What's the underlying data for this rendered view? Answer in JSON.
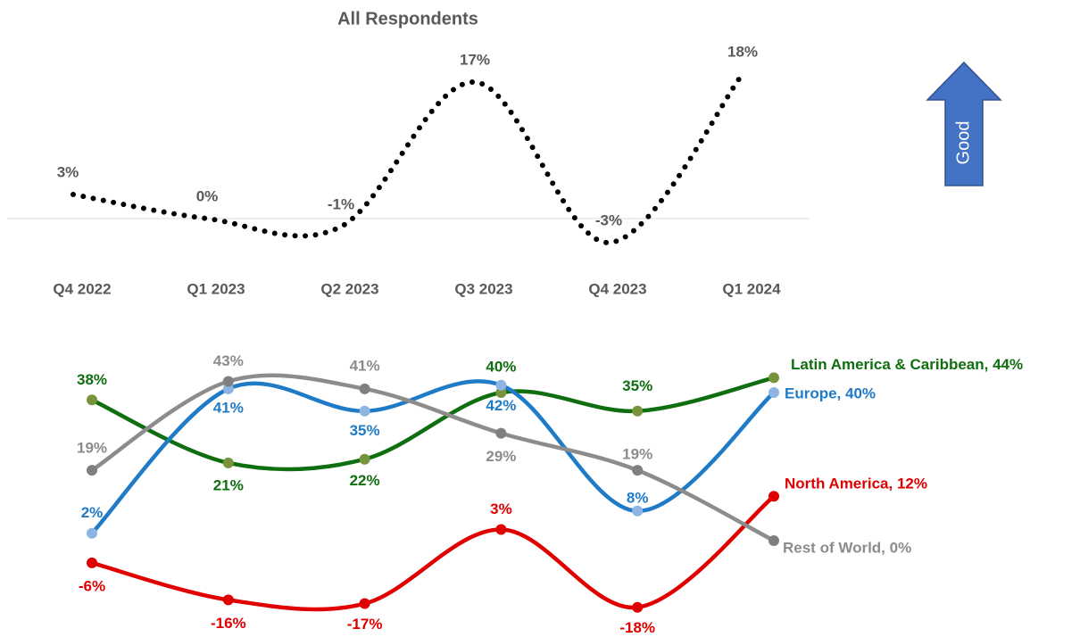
{
  "chart_data": [
    {
      "type": "line",
      "title": "All Respondents",
      "categories": [
        "Q4 2022",
        "Q1 2023",
        "Q2 2023",
        "Q3 2023",
        "Q4 2023",
        "Q1 2024"
      ],
      "values": [
        3,
        0,
        -1,
        17,
        -3,
        18
      ],
      "value_labels": [
        "3%",
        "0%",
        "-1%",
        "17%",
        "-3%",
        "18%"
      ],
      "color": "#000000",
      "line_style": "dotted",
      "annotation": "Good"
    },
    {
      "type": "line",
      "series": [
        {
          "color": "#0f6e0f",
          "marker_color": "#77933c",
          "values": [
            38,
            21,
            22,
            40,
            35,
            44
          ],
          "value_labels": [
            "38%",
            "21%",
            "22%",
            "40%",
            "35%",
            "Latin America & Caribbean, 44%"
          ]
        },
        {
          "color": "#1f7bc6",
          "marker_color": "#8db4e2",
          "values": [
            2,
            41,
            35,
            42,
            8,
            40
          ],
          "value_labels": [
            "2%",
            "41%",
            "35%",
            "42%",
            "8%",
            "Europe, 40%"
          ]
        },
        {
          "color": "#e00000",
          "marker_color": "#e00000",
          "values": [
            -6,
            -16,
            -17,
            3,
            -18,
            12
          ],
          "value_labels": [
            "-6%",
            "-16%",
            "-17%",
            "3%",
            "-18%",
            "North America, 12%"
          ]
        },
        {
          "color": "#8c8c8c",
          "marker_color": "#7f7f7f",
          "values": [
            19,
            43,
            41,
            29,
            19,
            0
          ],
          "value_labels": [
            "19%",
            "43%",
            "41%",
            "29%",
            "19%",
            "Rest of World, 0%"
          ]
        }
      ]
    }
  ]
}
